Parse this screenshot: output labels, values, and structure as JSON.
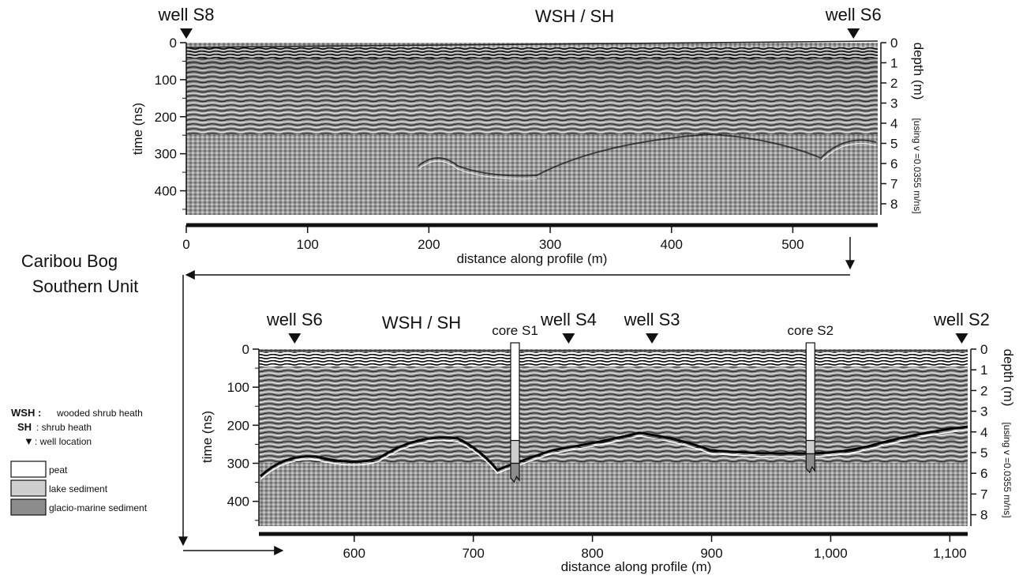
{
  "site": {
    "line1": "Caribou Bog",
    "line2": "Southern Unit"
  },
  "panels": [
    {
      "vegetation_label": "WSH / SH",
      "x_label": "distance along profile (m)",
      "y_label": "time (ns)",
      "depth_label": "depth (m)",
      "velocity_note": "[using v =0.0355 m/ns]",
      "x_ticks": [
        "0",
        "100",
        "200",
        "300",
        "400",
        "500"
      ],
      "time_ticks": [
        "0",
        "100",
        "200",
        "300",
        "400"
      ],
      "depth_ticks": [
        "0",
        "1",
        "2",
        "3",
        "4",
        "5",
        "6",
        "7",
        "8"
      ],
      "wells": [
        {
          "label": "well S8",
          "distance_m": 0
        },
        {
          "label": "well S6",
          "distance_m": 550
        }
      ]
    },
    {
      "vegetation_label": "WSH / SH",
      "x_label": "distance along profile (m)",
      "y_label": "time (ns)",
      "depth_label": "depth (m)",
      "velocity_note": "[using v =0.0355 m/ns]",
      "x_ticks": [
        "600",
        "700",
        "800",
        "900",
        "1,000",
        "1,100"
      ],
      "time_ticks": [
        "0",
        "100",
        "200",
        "300",
        "400"
      ],
      "depth_ticks": [
        "0",
        "1",
        "2",
        "3",
        "4",
        "5",
        "6",
        "7",
        "8"
      ],
      "wells": [
        {
          "label": "well S6",
          "distance_m": 550
        },
        {
          "label": "well S4",
          "distance_m": 780
        },
        {
          "label": "well S3",
          "distance_m": 850
        },
        {
          "label": "well S2",
          "distance_m": 1110
        }
      ],
      "cores": [
        {
          "label": "core S1",
          "distance_m": 735,
          "peat_to_ns": 240,
          "lake_to_ns": 300,
          "glacio_to_ns": 345
        },
        {
          "label": "core S2",
          "distance_m": 983,
          "peat_to_ns": 240,
          "lake_to_ns": 275,
          "glacio_to_ns": 320
        }
      ]
    }
  ],
  "legend": {
    "abbreviations": [
      {
        "key": "WSH :",
        "text": "wooded shrub heath"
      },
      {
        "key": "SH",
        "text": ":  shrub heath"
      },
      {
        "key": "▼",
        "text": ": well location"
      }
    ],
    "materials": [
      {
        "label": "peat",
        "color": "#ffffff"
      },
      {
        "label": "lake sediment",
        "color": "#cfcfcf"
      },
      {
        "label": "glacio-marine sediment",
        "color": "#8c8c8c"
      }
    ]
  }
}
